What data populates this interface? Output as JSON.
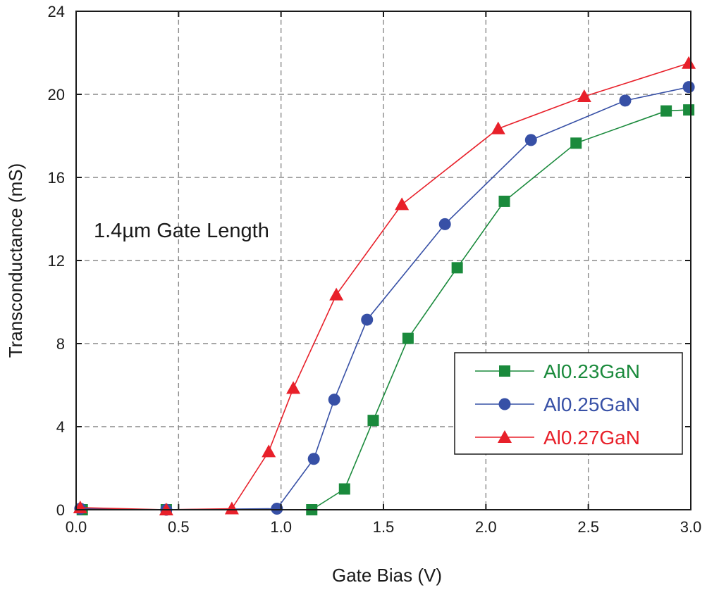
{
  "chart_data": {
    "type": "line",
    "title": "",
    "annotation": "1.4µm Gate Length",
    "xlabel": "Gate Bias (V)",
    "ylabel": "Transconductance (mS)",
    "xlim": [
      0,
      3.0
    ],
    "ylim": [
      0,
      24
    ],
    "xticks": [
      0,
      0.5,
      1.0,
      1.5,
      2.0,
      2.5,
      3.0
    ],
    "xtick_labels": [
      "0.0",
      "0.5",
      "1.0",
      "1.5",
      "2.0",
      "2.5",
      "3.0"
    ],
    "yticks": [
      0,
      4,
      8,
      12,
      16,
      20,
      24
    ],
    "ytick_labels": [
      "0",
      "4",
      "8",
      "12",
      "16",
      "20",
      "24"
    ],
    "grid": true,
    "legend_position": "bottom-right",
    "series": [
      {
        "name": "Al0.23GaN",
        "color": "#1a8a3c",
        "marker": "square",
        "x": [
          0.03,
          0.44,
          1.15,
          1.31,
          1.45,
          1.62,
          1.86,
          2.09,
          2.44,
          2.88,
          2.99
        ],
        "y": [
          0.0,
          0.0,
          0.0,
          1.0,
          4.3,
          8.25,
          11.65,
          14.85,
          17.65,
          19.2,
          19.25
        ]
      },
      {
        "name": "Al0.25GaN",
        "color": "#3750a6",
        "marker": "circle",
        "x": [
          0.02,
          0.44,
          0.98,
          1.16,
          1.26,
          1.42,
          1.8,
          2.22,
          2.68,
          2.99
        ],
        "y": [
          0.05,
          0.0,
          0.05,
          2.45,
          5.3,
          9.15,
          13.75,
          17.8,
          19.7,
          20.35
        ]
      },
      {
        "name": "Al0.27GaN",
        "color": "#e8202a",
        "marker": "triangle",
        "x": [
          0.02,
          0.44,
          0.76,
          0.94,
          1.06,
          1.27,
          1.59,
          2.06,
          2.48,
          2.99
        ],
        "y": [
          0.1,
          0.0,
          0.05,
          2.8,
          5.85,
          10.35,
          14.7,
          18.35,
          19.9,
          21.5
        ]
      }
    ]
  }
}
